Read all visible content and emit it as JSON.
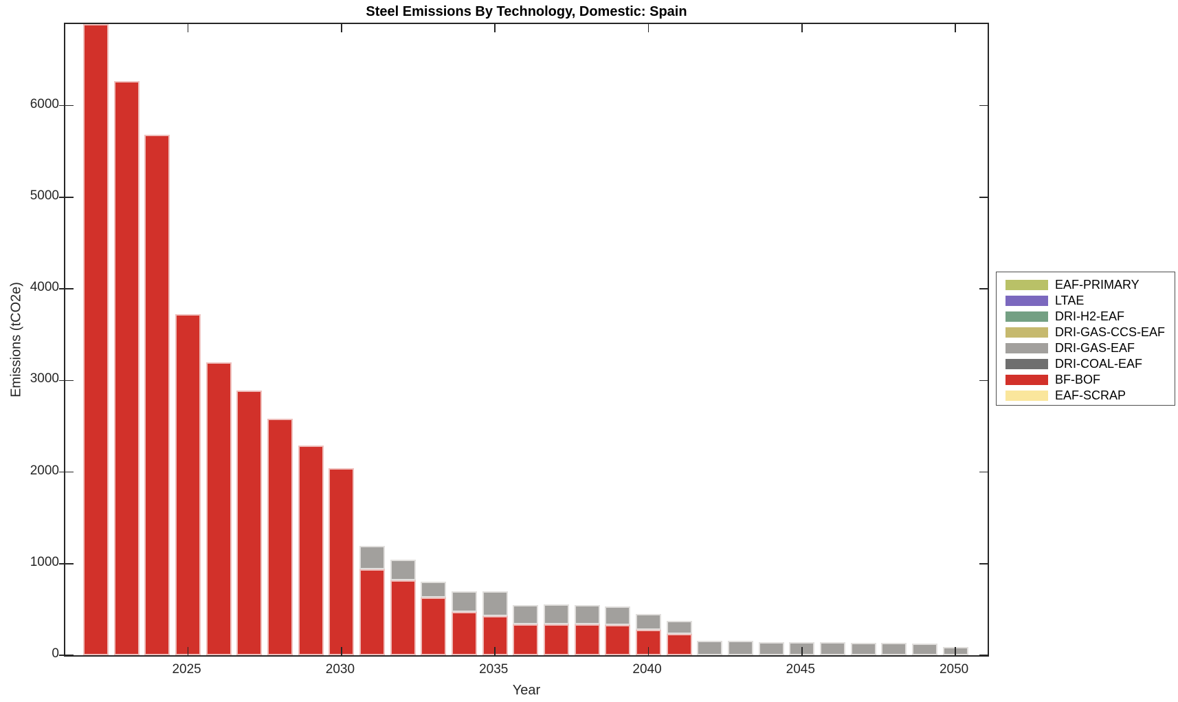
{
  "chart_data": {
    "type": "bar",
    "stacked": true,
    "title": "Steel Emissions By Technology, Domestic: Spain",
    "xlabel": "Year",
    "ylabel": "Emissions (tCO2e)",
    "xlim": [
      2021.0,
      2051.05
    ],
    "ylim": [
      0,
      6890
    ],
    "xticks": [
      2025,
      2030,
      2035,
      2040,
      2045,
      2050
    ],
    "yticks": [
      0,
      1000,
      2000,
      3000,
      4000,
      5000,
      6000
    ],
    "grid": false,
    "legend_position": "right-outside",
    "legend_order": [
      "EAF-PRIMARY",
      "LTAE",
      "DRI-H2-EAF",
      "DRI-GAS-CCS-EAF",
      "DRI-GAS-EAF",
      "DRI-COAL-EAF",
      "BF-BOF",
      "EAF-SCRAP"
    ],
    "colors": {
      "EAF-PRIMARY": "#b9c167",
      "LTAE": "#7b68be",
      "DRI-H2-EAF": "#74a083",
      "DRI-GAS-CCS-EAF": "#c6b96e",
      "DRI-GAS-EAF": "#a2a09d",
      "DRI-COAL-EAF": "#6f6f6f",
      "BF-BOF": "#d2312a",
      "EAF-SCRAP": "#fae69c"
    },
    "years": [
      2022,
      2023,
      2024,
      2025,
      2026,
      2027,
      2028,
      2029,
      2030,
      2031,
      2032,
      2033,
      2034,
      2035,
      2036,
      2037,
      2038,
      2039,
      2040,
      2041,
      2042,
      2043,
      2044,
      2045,
      2046,
      2047,
      2048,
      2049,
      2050
    ],
    "series": [
      {
        "name": "EAF-SCRAP",
        "color": "#fae69c",
        "values": [
          0,
          0,
          0,
          0,
          0,
          0,
          0,
          0,
          0,
          0,
          0,
          0,
          0,
          0,
          0,
          0,
          0,
          0,
          0,
          0,
          0,
          0,
          0,
          0,
          0,
          0,
          0,
          0,
          0
        ]
      },
      {
        "name": "BF-BOF",
        "color": "#d2312a",
        "values": [
          6890,
          6270,
          5680,
          3720,
          3200,
          2890,
          2580,
          2290,
          2045,
          935,
          820,
          630,
          475,
          425,
          340,
          335,
          340,
          330,
          275,
          230,
          0,
          0,
          0,
          0,
          0,
          0,
          0,
          0,
          0
        ]
      },
      {
        "name": "DRI-COAL-EAF",
        "color": "#6f6f6f",
        "values": [
          0,
          0,
          0,
          0,
          0,
          0,
          0,
          0,
          0,
          0,
          0,
          0,
          0,
          0,
          0,
          0,
          0,
          0,
          0,
          0,
          0,
          0,
          0,
          0,
          0,
          0,
          0,
          0,
          0
        ]
      },
      {
        "name": "DRI-GAS-EAF",
        "color": "#a2a09d",
        "values": [
          0,
          0,
          0,
          0,
          0,
          0,
          0,
          0,
          0,
          255,
          220,
          175,
          220,
          270,
          210,
          220,
          210,
          205,
          175,
          145,
          160,
          155,
          140,
          145,
          140,
          135,
          135,
          130,
          90
        ]
      },
      {
        "name": "DRI-GAS-CCS-EAF",
        "color": "#c6b96e",
        "values": [
          0,
          0,
          0,
          0,
          0,
          0,
          0,
          0,
          0,
          0,
          0,
          0,
          0,
          0,
          0,
          0,
          0,
          0,
          0,
          0,
          0,
          0,
          0,
          0,
          0,
          0,
          0,
          0,
          0
        ]
      },
      {
        "name": "DRI-H2-EAF",
        "color": "#74a083",
        "values": [
          0,
          0,
          0,
          0,
          0,
          0,
          0,
          0,
          0,
          0,
          0,
          0,
          0,
          0,
          0,
          0,
          0,
          0,
          0,
          0,
          0,
          0,
          0,
          0,
          0,
          0,
          0,
          0,
          0
        ]
      },
      {
        "name": "LTAE",
        "color": "#7b68be",
        "values": [
          0,
          0,
          0,
          0,
          0,
          0,
          0,
          0,
          0,
          0,
          0,
          0,
          0,
          0,
          0,
          0,
          0,
          0,
          0,
          0,
          0,
          0,
          0,
          0,
          0,
          0,
          0,
          0,
          0
        ]
      },
      {
        "name": "EAF-PRIMARY",
        "color": "#b9c167",
        "values": [
          0,
          0,
          0,
          0,
          0,
          0,
          0,
          0,
          0,
          0,
          0,
          0,
          0,
          0,
          0,
          0,
          0,
          0,
          0,
          0,
          0,
          0,
          0,
          0,
          0,
          0,
          0,
          0,
          0
        ]
      }
    ]
  }
}
